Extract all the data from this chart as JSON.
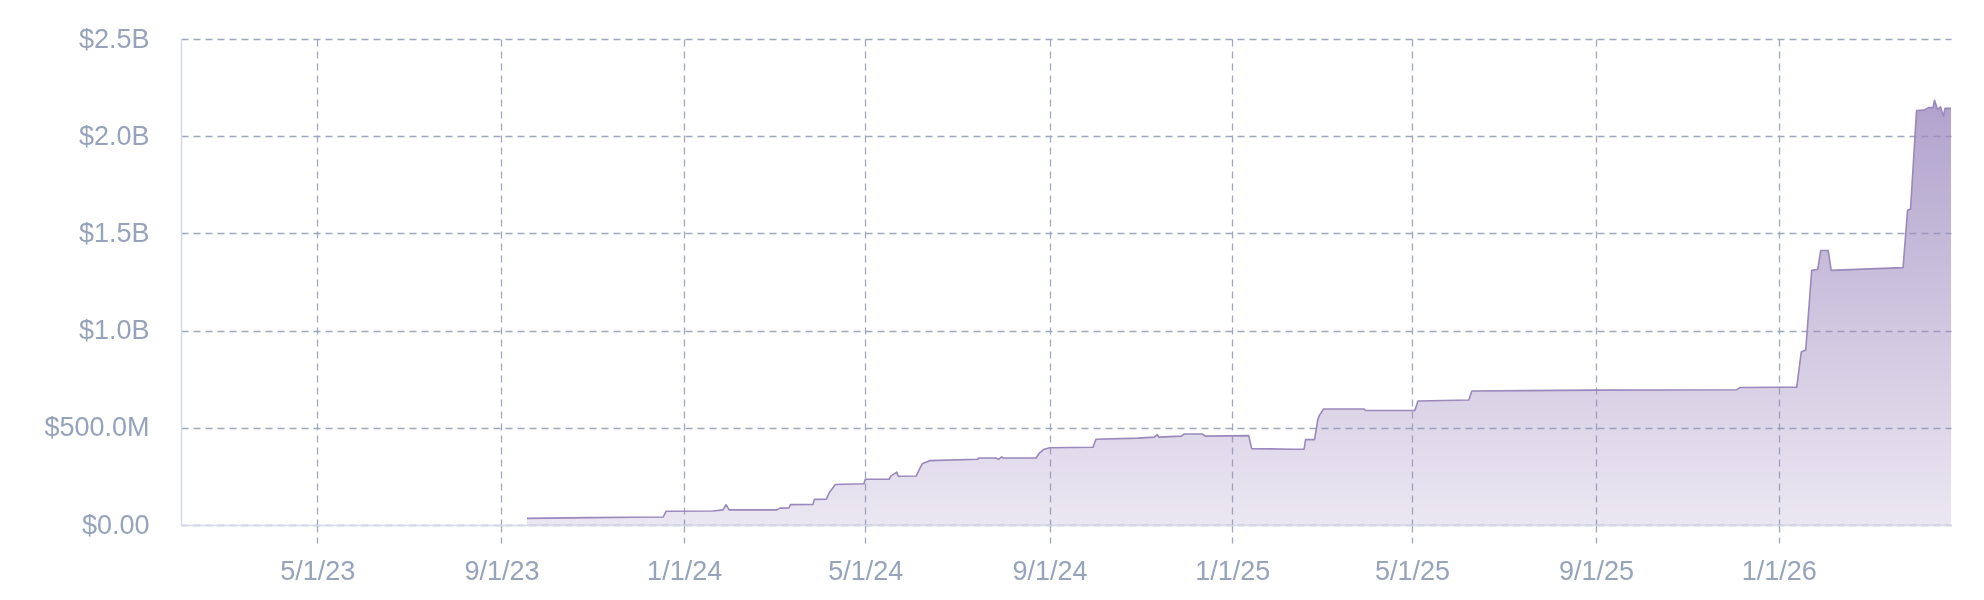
{
  "chart_data": {
    "type": "area",
    "x": [
      "2023-09-18",
      "2023-10-31",
      "2023-11-27",
      "2023-12-18",
      "2023-12-20",
      "2024-01-20",
      "2024-01-27",
      "2024-01-29",
      "2024-01-31",
      "2024-03-03",
      "2024-03-05",
      "2024-03-11",
      "2024-03-12",
      "2024-03-27",
      "2024-03-28",
      "2024-04-05",
      "2024-04-07",
      "2024-04-11",
      "2024-04-30",
      "2024-05-01",
      "2024-05-17",
      "2024-05-18",
      "2024-05-22",
      "2024-05-23",
      "2024-06-04",
      "2024-06-06",
      "2024-06-08",
      "2024-06-13",
      "2024-07-15",
      "2024-07-16",
      "2024-07-27",
      "2024-07-29",
      "2024-07-31",
      "2024-08-01",
      "2024-08-23",
      "2024-08-25",
      "2024-08-28",
      "2024-09-01",
      "2024-09-30",
      "2024-10-02",
      "2024-10-30",
      "2024-11-10",
      "2024-11-12",
      "2024-11-13",
      "2024-11-28",
      "2024-11-30",
      "2024-12-12",
      "2024-12-14",
      "2025-01-12",
      "2025-01-14",
      "2025-02-10",
      "2025-02-18",
      "2025-02-19",
      "2025-02-25",
      "2025-02-27",
      "2025-02-28",
      "2025-03-03",
      "2025-03-30",
      "2025-03-31",
      "2025-05-03",
      "2025-05-05",
      "2025-06-08",
      "2025-06-10",
      "2025-09-01",
      "2025-12-04",
      "2025-12-06",
      "2026-01-13",
      "2026-01-16",
      "2026-01-19",
      "2026-01-23",
      "2026-01-27",
      "2026-01-29",
      "2026-02-03",
      "2026-02-05",
      "2026-03-25",
      "2026-03-28",
      "2026-03-30",
      "2026-04-03",
      "2026-04-08",
      "2026-04-11",
      "2026-04-14",
      "2026-04-15",
      "2026-04-17",
      "2026-04-19",
      "2026-04-21",
      "2026-04-22",
      "2026-04-26"
    ],
    "series": [
      {
        "color": "#9b88bd",
        "values": [
          34000000,
          38000000,
          40000000,
          41000000,
          71000000,
          72000000,
          78000000,
          105000000,
          78000000,
          78000000,
          87000000,
          88000000,
          105000000,
          106000000,
          132000000,
          133000000,
          167000000,
          208000000,
          212000000,
          235000000,
          236000000,
          251000000,
          272000000,
          251000000,
          252000000,
          285000000,
          315000000,
          331000000,
          338000000,
          345000000,
          345000000,
          338000000,
          350000000,
          345000000,
          345000000,
          368000000,
          388000000,
          397000000,
          400000000,
          441000000,
          447000000,
          452000000,
          465000000,
          452000000,
          457000000,
          468000000,
          468000000,
          457000000,
          460000000,
          393000000,
          390000000,
          390000000,
          439000000,
          439000000,
          536000000,
          561000000,
          597000000,
          597000000,
          589000000,
          589000000,
          638000000,
          643000000,
          689000000,
          694000000,
          696000000,
          707000000,
          709000000,
          890000000,
          900000000,
          1310000000,
          1314000000,
          1412000000,
          1412000000,
          1310000000,
          1324000000,
          1619000000,
          1625000000,
          2132000000,
          2134000000,
          2147000000,
          2147000000,
          2185000000,
          2137000000,
          2151000000,
          2102000000,
          2143000000,
          2143000000
        ]
      }
    ],
    "xlim": [
      "2023-01-30",
      "2026-04-26"
    ],
    "xticks": [
      {
        "value": "2023-05-01",
        "label": "5/1/23"
      },
      {
        "value": "2023-09-01",
        "label": "9/1/23"
      },
      {
        "value": "2024-01-01",
        "label": "1/1/24"
      },
      {
        "value": "2024-05-01",
        "label": "5/1/24"
      },
      {
        "value": "2024-09-01",
        "label": "9/1/24"
      },
      {
        "value": "2025-01-01",
        "label": "1/1/25"
      },
      {
        "value": "2025-05-01",
        "label": "5/1/25"
      },
      {
        "value": "2025-09-01",
        "label": "9/1/25"
      },
      {
        "value": "2026-01-01",
        "label": "1/1/26"
      }
    ],
    "ylim": [
      0,
      2500000000
    ],
    "yticks": [
      {
        "value": 0,
        "label": "$0.00"
      },
      {
        "value": 500000000,
        "label": "$500.0M"
      },
      {
        "value": 1000000000,
        "label": "$1.0B"
      },
      {
        "value": 1500000000,
        "label": "$1.5B"
      },
      {
        "value": 2000000000,
        "label": "$2.0B"
      },
      {
        "value": 2500000000,
        "label": "$2.5B"
      }
    ],
    "grid": true
  }
}
